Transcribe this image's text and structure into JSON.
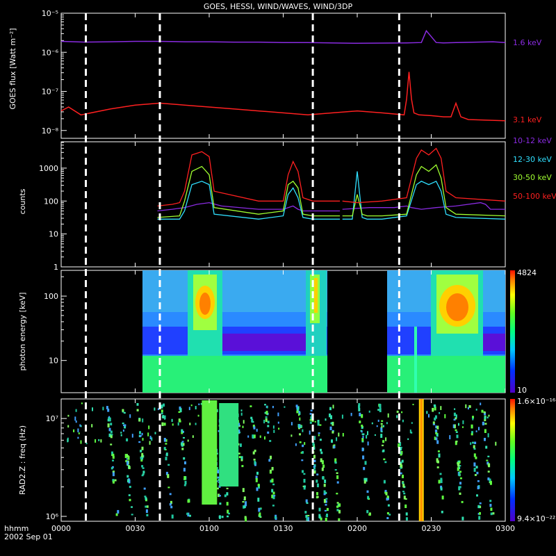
{
  "title": "GOES, HESSI, WIND/WAVES, WIND/3DP",
  "xaxis": {
    "unit_label": "hhmm",
    "date_label": "2002 Sep 01",
    "ticks": [
      {
        "t": 0,
        "label": "0000"
      },
      {
        "t": 30,
        "label": "0030"
      },
      {
        "t": 60,
        "label": "0100"
      },
      {
        "t": 90,
        "label": "0130"
      },
      {
        "t": 120,
        "label": "0200"
      },
      {
        "t": 150,
        "label": "0230"
      },
      {
        "t": 180,
        "label": "0300"
      }
    ],
    "range_minutes": [
      0,
      180
    ],
    "dashed_markers_minutes": [
      10,
      40,
      102,
      137
    ]
  },
  "colors": {
    "purple": "#8a2be2",
    "red": "#ff2020",
    "cyan": "#30e0ff",
    "green": "#a0ff30"
  },
  "chart_data": [
    {
      "type": "line",
      "ylabel": "GOES flux [Watt m⁻²]",
      "yscale": "log",
      "ylim_exp": [
        -8.2,
        -5
      ],
      "yticks": [
        {
          "exp": -8,
          "label": "10⁻⁸"
        },
        {
          "exp": -7,
          "label": "10⁻⁷"
        },
        {
          "exp": -6,
          "label": "10⁻⁶"
        },
        {
          "exp": -5,
          "label": "10⁻⁵"
        }
      ],
      "series": [
        {
          "name": "1.6 keV",
          "color": "#8a2be2",
          "t": [
            0,
            10,
            20,
            30,
            40,
            50,
            60,
            70,
            80,
            90,
            100,
            120,
            140,
            146,
            148,
            150,
            152,
            155,
            160,
            175,
            180
          ],
          "log_values": [
            -5.72,
            -5.74,
            -5.73,
            -5.72,
            -5.72,
            -5.73,
            -5.73,
            -5.74,
            -5.74,
            -5.75,
            -5.75,
            -5.77,
            -5.76,
            -5.75,
            -5.45,
            -5.6,
            -5.75,
            -5.76,
            -5.75,
            -5.73,
            -5.75
          ]
        },
        {
          "name": "3.1 keV",
          "color": "#ff2020",
          "t": [
            0,
            3,
            8,
            20,
            30,
            40,
            50,
            60,
            70,
            80,
            90,
            100,
            110,
            120,
            130,
            139,
            140,
            141,
            142,
            143,
            145,
            150,
            155,
            158,
            160,
            162,
            165,
            180
          ],
          "log_values": [
            -7.5,
            -7.4,
            -7.6,
            -7.45,
            -7.35,
            -7.3,
            -7.35,
            -7.4,
            -7.45,
            -7.5,
            -7.55,
            -7.6,
            -7.55,
            -7.5,
            -7.55,
            -7.6,
            -7.2,
            -6.5,
            -7.2,
            -7.55,
            -7.6,
            -7.62,
            -7.65,
            -7.65,
            -7.3,
            -7.65,
            -7.72,
            -7.75
          ]
        }
      ]
    },
    {
      "type": "line",
      "ylabel": "counts",
      "yscale": "log",
      "ylim_exp": [
        0,
        3.8
      ],
      "yticks": [
        {
          "exp": 0,
          "label": "1"
        },
        {
          "exp": 1,
          "label": "10"
        },
        {
          "exp": 2,
          "label": "100"
        },
        {
          "exp": 3,
          "label": "1000"
        }
      ],
      "series": [
        {
          "name": "10-12 keV",
          "color": "#8a2be2",
          "segments": [
            {
              "t": [
                39,
                45,
                50,
                55,
                60,
                65,
                80,
                90,
                92,
                94,
                96,
                98,
                102,
                113
              ],
              "log_values": [
                1.7,
                1.75,
                1.8,
                1.9,
                1.95,
                1.85,
                1.75,
                1.75,
                1.8,
                1.85,
                1.75,
                1.7,
                1.7,
                1.7
              ]
            },
            {
              "t": [
                114,
                125,
                135,
                140,
                142,
                146,
                152,
                160,
                170,
                172,
                174,
                180
              ],
              "log_values": [
                1.75,
                1.8,
                1.8,
                1.85,
                1.8,
                1.75,
                1.8,
                1.85,
                1.95,
                1.9,
                1.75,
                1.75
              ]
            }
          ]
        },
        {
          "name": "12-30 keV",
          "color": "#30e0ff",
          "segments": [
            {
              "t": [
                39,
                48,
                50,
                53,
                57,
                60,
                62,
                80,
                90,
                92,
                94,
                96,
                98,
                102,
                113
              ],
              "log_values": [
                1.45,
                1.45,
                1.7,
                2.5,
                2.6,
                2.5,
                1.6,
                1.45,
                1.55,
                2.2,
                2.4,
                2.1,
                1.5,
                1.45,
                1.45
              ]
            },
            {
              "t": [
                114,
                118,
                120,
                122,
                124,
                126,
                130,
                140,
                144,
                146,
                149,
                152,
                154,
                156,
                160,
                180
              ],
              "log_values": [
                1.45,
                1.45,
                2.9,
                1.5,
                1.45,
                1.45,
                1.45,
                1.55,
                2.5,
                2.6,
                2.5,
                2.6,
                2.3,
                1.6,
                1.5,
                1.45
              ]
            }
          ]
        },
        {
          "name": "30-50 keV",
          "color": "#a0ff30",
          "segments": [
            {
              "t": [
                39,
                48,
                50,
                53,
                57,
                60,
                62,
                80,
                90,
                92,
                94,
                96,
                98,
                102,
                113
              ],
              "log_values": [
                1.5,
                1.55,
                2.0,
                2.9,
                3.05,
                2.8,
                1.8,
                1.6,
                1.7,
                2.5,
                2.6,
                2.4,
                1.6,
                1.55,
                1.55
              ]
            },
            {
              "t": [
                114,
                118,
                120,
                122,
                124,
                130,
                140,
                144,
                146,
                149,
                152,
                154,
                156,
                160,
                180
              ],
              "log_values": [
                1.55,
                1.55,
                2.2,
                1.6,
                1.55,
                1.55,
                1.6,
                2.8,
                3.05,
                2.9,
                3.1,
                2.7,
                1.8,
                1.6,
                1.55
              ]
            }
          ]
        },
        {
          "name": "50-100 keV",
          "color": "#ff2020",
          "segments": [
            {
              "t": [
                39,
                45,
                48,
                50,
                53,
                57,
                60,
                62,
                80,
                90,
                92,
                94,
                96,
                98,
                102,
                113
              ],
              "log_values": [
                1.85,
                1.9,
                1.95,
                2.3,
                3.4,
                3.5,
                3.35,
                2.3,
                2.0,
                2.0,
                2.8,
                3.2,
                2.9,
                2.1,
                2.0,
                2.0
              ]
            },
            {
              "t": [
                114,
                120,
                130,
                140,
                144,
                146,
                149,
                152,
                154,
                156,
                160,
                180
              ],
              "log_values": [
                2.0,
                1.95,
                2.0,
                2.1,
                3.3,
                3.55,
                3.4,
                3.6,
                3.3,
                2.3,
                2.1,
                2.0
              ]
            }
          ]
        }
      ]
    },
    {
      "type": "heatmap",
      "ylabel": "photon energy [keV]",
      "yscale": "log",
      "ylim_exp": [
        0.5,
        2.4
      ],
      "yticks": [
        {
          "exp": 1,
          "label": "10"
        },
        {
          "exp": 2,
          "label": "100"
        }
      ],
      "coverage_minutes": [
        [
          39,
          113
        ],
        [
          114,
          180
        ]
      ],
      "gaps_minutes": [
        [
          113,
          119
        ],
        [
          160,
          165
        ]
      ],
      "colorbar": {
        "max_label": "4824",
        "min_label": "10"
      }
    },
    {
      "type": "heatmap",
      "ylabel": "RAD2.Z : freq (Hz)",
      "yscale": "log",
      "ylim_exp": [
        5.95,
        7.2
      ],
      "yticks": [
        {
          "exp": 6,
          "label": "10⁶"
        },
        {
          "exp": 7,
          "label": "10⁷"
        }
      ],
      "colorbar": {
        "max_label": "1.6×10⁻¹⁶",
        "min_label": "9.4×10⁻²²"
      }
    }
  ]
}
